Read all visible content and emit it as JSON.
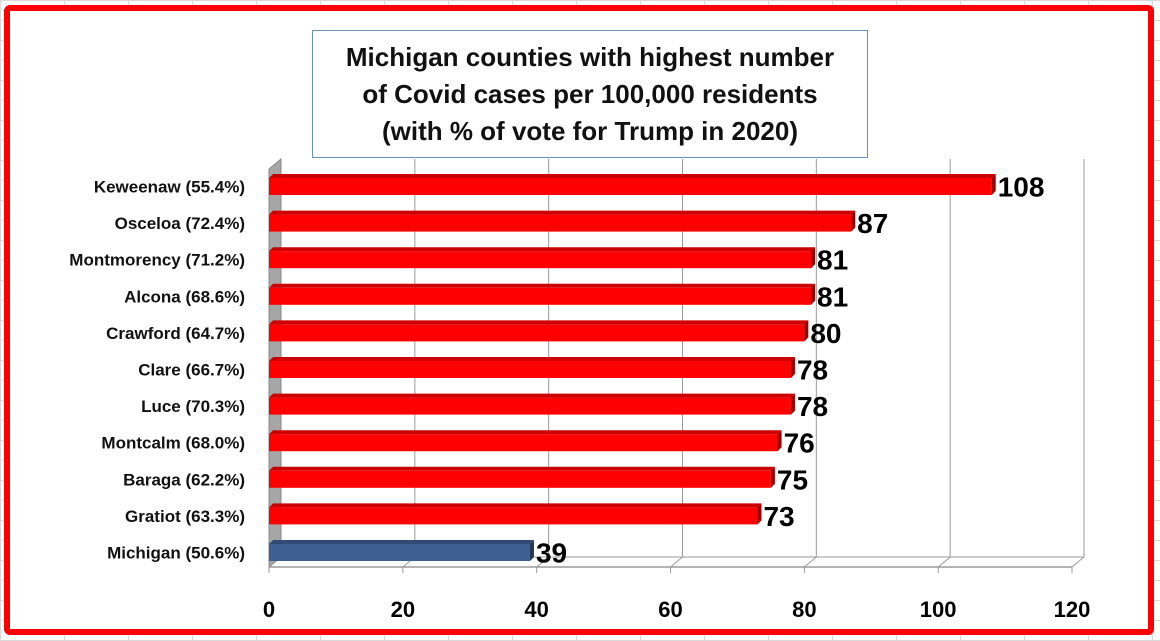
{
  "chart_data": {
    "type": "bar",
    "orientation": "horizontal",
    "title": "Michigan counties with highest number of Covid cases per 100,000 residents (with % of vote for Trump in 2020)",
    "title_lines": [
      "Michigan counties with highest number",
      "of Covid cases per 100,000 residents",
      "(with % of vote for Trump in 2020)"
    ],
    "categories": [
      "Keweenaw (55.4%)",
      "Osceloa (72.4%)",
      "Montmorency (71.2%)",
      "Alcona (68.6%)",
      "Crawford (64.7%)",
      "Clare (66.7%)",
      "Luce (70.3%)",
      "Montcalm (68.0%)",
      "Baraga (62.2%)",
      "Gratiot (63.3%)",
      "Michigan (50.6%)"
    ],
    "values": [
      108,
      87,
      81,
      81,
      80,
      78,
      78,
      76,
      75,
      73,
      39
    ],
    "bar_colors": [
      "#ff0000",
      "#ff0000",
      "#ff0000",
      "#ff0000",
      "#ff0000",
      "#ff0000",
      "#ff0000",
      "#ff0000",
      "#ff0000",
      "#ff0000",
      "#3d5f91"
    ],
    "xlim": [
      0,
      120
    ],
    "x_ticks": [
      0,
      20,
      40,
      60,
      80,
      100,
      120
    ],
    "xlabel": "",
    "ylabel": "",
    "grid": true,
    "legend": "none",
    "style": "3d"
  },
  "colors": {
    "frame": "#ff0000",
    "title_border": "#6b8fb8",
    "county_bar": "#ff0000",
    "state_bar": "#3d5f91",
    "gridline": "#9a9a9a"
  }
}
